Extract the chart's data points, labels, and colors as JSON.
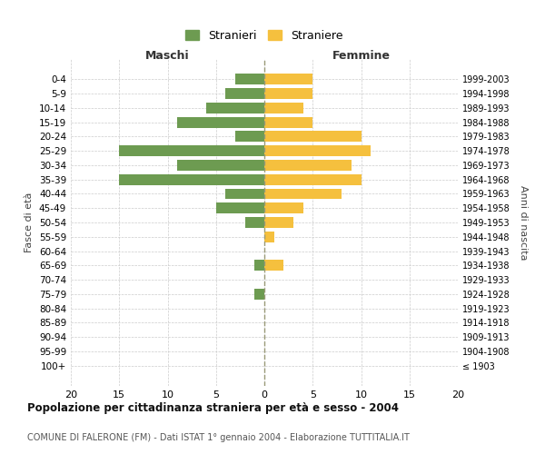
{
  "age_groups": [
    "0-4",
    "5-9",
    "10-14",
    "15-19",
    "20-24",
    "25-29",
    "30-34",
    "35-39",
    "40-44",
    "45-49",
    "50-54",
    "55-59",
    "60-64",
    "65-69",
    "70-74",
    "75-79",
    "80-84",
    "85-89",
    "90-94",
    "95-99",
    "100+"
  ],
  "birth_years": [
    "1999-2003",
    "1994-1998",
    "1989-1993",
    "1984-1988",
    "1979-1983",
    "1974-1978",
    "1969-1973",
    "1964-1968",
    "1959-1963",
    "1954-1958",
    "1949-1953",
    "1944-1948",
    "1939-1943",
    "1934-1938",
    "1929-1933",
    "1924-1928",
    "1919-1923",
    "1914-1918",
    "1909-1913",
    "1904-1908",
    "≤ 1903"
  ],
  "maschi": [
    3,
    4,
    6,
    9,
    3,
    15,
    9,
    15,
    4,
    5,
    2,
    0,
    0,
    1,
    0,
    1,
    0,
    0,
    0,
    0,
    0
  ],
  "femmine": [
    5,
    5,
    4,
    5,
    10,
    11,
    9,
    10,
    8,
    4,
    3,
    1,
    0,
    2,
    0,
    0,
    0,
    0,
    0,
    0,
    0
  ],
  "color_maschi": "#6d9b51",
  "color_femmine": "#f5c03e",
  "title_bold": "Popolazione per cittadinanza straniera per età e sesso - 2004",
  "subtitle": "COMUNE DI FALERONE (FM) - Dati ISTAT 1° gennaio 2004 - Elaborazione TUTTITALIA.IT",
  "xlabel_left": "Maschi",
  "xlabel_right": "Femmine",
  "ylabel_left": "Fasce di età",
  "ylabel_right": "Anni di nascita",
  "legend_stranieri": "Stranieri",
  "legend_straniere": "Straniere",
  "xlim": 20,
  "background_color": "#ffffff",
  "grid_color": "#cccccc"
}
